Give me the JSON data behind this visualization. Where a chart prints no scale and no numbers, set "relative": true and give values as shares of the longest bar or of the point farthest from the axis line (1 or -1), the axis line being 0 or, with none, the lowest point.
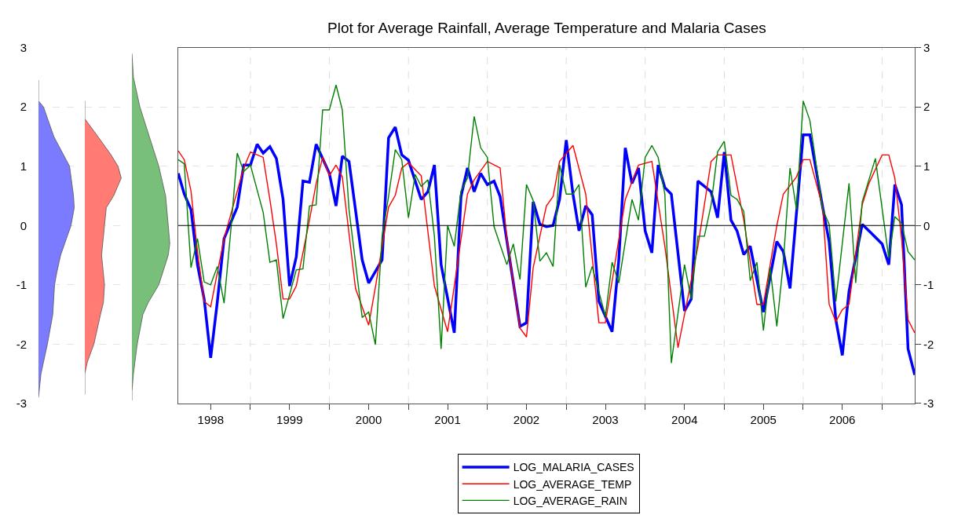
{
  "chart_data": [
    {
      "type": "area",
      "orientation": "horizontal",
      "relative": true,
      "color": "#7b7bff",
      "x": [
        2.45,
        2.1,
        2,
        1.5,
        1,
        0.5,
        0.3,
        0,
        -0.5,
        -0.8,
        -1,
        -1.5,
        -2,
        -2.5,
        -2.9
      ],
      "values": [
        0,
        0,
        0.14,
        0.43,
        0.87,
        0.98,
        1,
        0.91,
        0.62,
        0.51,
        0.45,
        0.4,
        0.25,
        0.07,
        0
      ],
      "ylim": [
        -3,
        3
      ],
      "yticks": [
        -3,
        -2,
        -1,
        0,
        1,
        2,
        3
      ],
      "grid": "y",
      "tick_labels": "y"
    },
    {
      "type": "area",
      "orientation": "horizontal",
      "relative": true,
      "color": "#ff7b73",
      "x": [
        2.1,
        1.8,
        1.5,
        1.2,
        1,
        0.8,
        0.5,
        0.3,
        0,
        -0.5,
        -1,
        -1.3,
        -1.5,
        -2,
        -2.3,
        -2.5,
        -2.85
      ],
      "values": [
        0,
        0,
        0.36,
        0.71,
        0.91,
        1,
        0.79,
        0.59,
        0.54,
        0.46,
        0.54,
        0.51,
        0.43,
        0.25,
        0.07,
        0,
        0
      ],
      "ylim": [
        -3,
        3
      ],
      "yticks": [
        -3,
        -2,
        -1,
        0,
        1,
        2,
        3
      ],
      "grid": "y",
      "tick_labels": false
    },
    {
      "type": "area",
      "orientation": "horizontal",
      "relative": true,
      "color": "#78c07a",
      "x": [
        2.9,
        2.5,
        2,
        1.5,
        1,
        0.5,
        0,
        -0.3,
        -0.5,
        -1,
        -1.3,
        -1.5,
        -2,
        -2.5,
        -2.8,
        -2.95
      ],
      "values": [
        0,
        0.04,
        0.21,
        0.46,
        0.71,
        0.89,
        0.96,
        1,
        0.96,
        0.71,
        0.43,
        0.29,
        0.14,
        0.04,
        0,
        0
      ],
      "ylim": [
        -3,
        3
      ],
      "yticks": [
        -3,
        -2,
        -1,
        0,
        1,
        2,
        3
      ],
      "grid": "y",
      "tick_labels": false
    },
    {
      "type": "line",
      "title": "Plot for Average Rainfall, Average Temperature and Malaria Cases",
      "xlim": [
        "1998-02",
        "2007-06"
      ],
      "xticks": [
        {
          "value": "1998-07",
          "label": "1998"
        },
        {
          "value": "1999-01",
          "label": null
        },
        {
          "value": "1999-07",
          "label": "1999"
        },
        {
          "value": "2000-01",
          "label": null
        },
        {
          "value": "2000-07",
          "label": "2000"
        },
        {
          "value": "2001-01",
          "label": null
        },
        {
          "value": "2001-07",
          "label": "2001"
        },
        {
          "value": "2002-01",
          "label": null
        },
        {
          "value": "2002-07",
          "label": "2002"
        },
        {
          "value": "2003-01",
          "label": null
        },
        {
          "value": "2003-07",
          "label": "2003"
        },
        {
          "value": "2004-01",
          "label": null
        },
        {
          "value": "2004-07",
          "label": "2004"
        },
        {
          "value": "2005-01",
          "label": null
        },
        {
          "value": "2005-07",
          "label": "2005"
        },
        {
          "value": "2006-01",
          "label": null
        },
        {
          "value": "2006-07",
          "label": "2006"
        },
        {
          "value": "2007-01",
          "label": null
        }
      ],
      "ylim": [
        -3,
        3
      ],
      "yticks": [
        -3,
        -2,
        -1,
        0,
        1,
        2,
        3
      ],
      "grid": true,
      "legend": "bottom",
      "marker": "none",
      "line_style": "solid",
      "ref_lines": [
        {
          "axis": "y",
          "value": 0,
          "color": "#000000"
        }
      ],
      "series": [
        {
          "name": "LOG_MALARIA_CASES",
          "color": "#0000ff",
          "x": [
            "1998-02",
            "1998-03",
            "1998-04",
            "1998-05",
            "1998-06",
            "1998-07",
            "1998-08",
            "1998-09",
            "1998-11",
            "1998-12",
            "1999-01",
            "1999-02",
            "1999-03",
            "1999-04",
            "1999-05",
            "1999-06",
            "1999-07",
            "1999-08",
            "1999-09",
            "1999-10",
            "1999-11",
            "2000-01",
            "2000-02",
            "2000-03",
            "2000-04",
            "2000-06",
            "2000-07",
            "2000-09",
            "2000-10",
            "2000-11",
            "2000-12",
            "2001-01",
            "2001-03",
            "2001-04",
            "2001-05",
            "2001-06",
            "2001-08",
            "2001-09",
            "2001-10",
            "2001-11",
            "2001-12",
            "2002-01",
            "2002-02",
            "2002-03",
            "2002-06",
            "2002-07",
            "2002-08",
            "2002-09",
            "2002-10",
            "2002-11",
            "2002-12",
            "2003-01",
            "2003-02",
            "2003-03",
            "2003-04",
            "2003-05",
            "2003-06",
            "2003-08",
            "2003-09",
            "2003-10",
            "2003-11",
            "2003-12",
            "2004-01",
            "2004-02",
            "2004-03",
            "2004-04",
            "2004-05",
            "2004-07",
            "2004-08",
            "2004-09",
            "2004-11",
            "2004-12",
            "2005-01",
            "2005-02",
            "2005-03",
            "2005-04",
            "2005-05",
            "2005-07",
            "2005-09",
            "2005-10",
            "2005-11",
            "2006-01",
            "2006-02",
            "2006-04",
            "2006-05",
            "2006-06",
            "2006-07",
            "2006-08",
            "2006-10",
            "2006-11",
            "2007-01",
            "2007-02",
            "2007-03",
            "2007-04",
            "2007-05",
            "2007-06"
          ],
          "values": [
            0.88,
            0.53,
            0.27,
            -0.66,
            -1.24,
            -2.23,
            -1.28,
            -0.22,
            0.31,
            1.02,
            1.02,
            1.37,
            1.22,
            1.33,
            1.13,
            0.44,
            -1.02,
            -0.53,
            0.75,
            0.73,
            1.37,
            0.88,
            0.33,
            1.17,
            1.08,
            -0.58,
            -0.97,
            -0.58,
            1.48,
            1.66,
            1.19,
            1.1,
            0.44,
            0.57,
            1.02,
            -0.66,
            -1.81,
            0.49,
            0.97,
            0.57,
            0.88,
            0.69,
            0.75,
            0.49,
            -1.7,
            -1.64,
            0.4,
            0.02,
            -0.02,
            0.0,
            0.44,
            1.44,
            0.53,
            -0.09,
            0.33,
            0.18,
            -1.28,
            -1.79,
            -0.58,
            1.31,
            0.71,
            0.97,
            -0.09,
            -0.46,
            1.02,
            0.64,
            0.53,
            -1.44,
            -1.24,
            0.75,
            0.57,
            0.13,
            1.24,
            0.09,
            -0.09,
            -0.49,
            -0.35,
            -1.46,
            -0.27,
            -0.44,
            -1.06,
            1.53,
            1.53,
            0.31,
            -0.27,
            -1.59,
            -2.19,
            -1.11,
            0.02,
            -0.09,
            -0.31,
            -0.66,
            0.69,
            0.35,
            -2.08,
            -2.52
          ]
        },
        {
          "name": "LOG_AVERAGE_TEMP",
          "color": "#ff0000",
          "x": [
            "1998-02",
            "1998-03",
            "1998-04",
            "1998-05",
            "1998-06",
            "1998-07",
            "1998-09",
            "1998-11",
            "1998-12",
            "1999-01",
            "1999-03",
            "1999-04",
            "1999-05",
            "1999-06",
            "1999-07",
            "1999-08",
            "1999-10",
            "1999-11",
            "1999-12",
            "2000-01",
            "2000-02",
            "2000-03",
            "2000-05",
            "2000-07",
            "2000-08",
            "2000-10",
            "2000-11",
            "2000-12",
            "2001-01",
            "2001-03",
            "2001-05",
            "2001-07",
            "2001-08",
            "2001-10",
            "2001-11",
            "2002-01",
            "2002-03",
            "2002-04",
            "2002-06",
            "2002-07",
            "2002-08",
            "2002-10",
            "2002-11",
            "2002-12",
            "2003-02",
            "2003-04",
            "2003-06",
            "2003-07",
            "2003-10",
            "2003-12",
            "2004-02",
            "2004-04",
            "2004-06",
            "2004-09",
            "2004-11",
            "2004-12",
            "2005-02",
            "2005-04",
            "2005-06",
            "2005-07",
            "2005-09",
            "2005-10",
            "2005-12",
            "2006-01",
            "2006-02",
            "2006-04",
            "2006-05",
            "2006-06",
            "2006-07",
            "2006-08",
            "2006-10",
            "2006-11",
            "2007-01",
            "2007-02",
            "2007-03",
            "2007-04",
            "2007-05",
            "2007-06"
          ],
          "values": [
            1.26,
            1.11,
            0.58,
            -0.44,
            -1.28,
            -1.37,
            -0.22,
            0.58,
            0.97,
            1.24,
            1.15,
            0.44,
            -0.31,
            -1.24,
            -1.24,
            -1.02,
            0.09,
            0.71,
            1.15,
            0.84,
            1.02,
            0.82,
            -1.06,
            -1.68,
            -1.04,
            0.31,
            0.51,
            0.97,
            1.06,
            0.84,
            -1.02,
            -1.79,
            -1.02,
            0.53,
            0.77,
            1.08,
            0.97,
            -0.22,
            -1.73,
            -1.88,
            -0.71,
            0.33,
            0.49,
            1.08,
            1.35,
            0.53,
            -1.64,
            -1.64,
            0.44,
            1.02,
            1.08,
            -0.35,
            -2.06,
            -0.35,
            1.08,
            1.19,
            1.19,
            0.09,
            -1.33,
            -1.33,
            0,
            0.53,
            0.82,
            1.11,
            1.11,
            0.31,
            -1.33,
            -1.62,
            -1.42,
            -1.33,
            0.35,
            0.71,
            1.19,
            1.19,
            0.8,
            -0.22,
            -1.59,
            -1.81
          ]
        },
        {
          "name": "LOG_AVERAGE_RAIN",
          "color": "#008000",
          "x": [
            "1998-02",
            "1998-03",
            "1998-04",
            "1998-05",
            "1998-06",
            "1998-07",
            "1998-08",
            "1998-09",
            "1998-10",
            "1998-11",
            "1998-12",
            "1999-01",
            "1999-03",
            "1999-04",
            "1999-05",
            "1999-06",
            "1999-08",
            "1999-09",
            "1999-10",
            "1999-11",
            "1999-12",
            "2000-01",
            "2000-02",
            "2000-03",
            "2000-04",
            "2000-06",
            "2000-07",
            "2000-08",
            "2000-09",
            "2000-10",
            "2000-11",
            "2000-12",
            "2001-01",
            "2001-02",
            "2001-03",
            "2001-04",
            "2001-05",
            "2001-06",
            "2001-07",
            "2001-08",
            "2001-09",
            "2001-10",
            "2001-11",
            "2001-12",
            "2002-01",
            "2002-02",
            "2002-04",
            "2002-05",
            "2002-06",
            "2002-07",
            "2002-08",
            "2002-09",
            "2002-10",
            "2002-11",
            "2002-12",
            "2003-01",
            "2003-02",
            "2003-03",
            "2003-04",
            "2003-05",
            "2003-07",
            "2003-08",
            "2003-09",
            "2003-11",
            "2003-12",
            "2004-01",
            "2004-02",
            "2004-03",
            "2004-04",
            "2004-05",
            "2004-07",
            "2004-08",
            "2004-09",
            "2004-10",
            "2004-11",
            "2004-12",
            "2005-01",
            "2005-02",
            "2005-03",
            "2005-04",
            "2005-05",
            "2005-06",
            "2005-07",
            "2005-08",
            "2005-09",
            "2005-10",
            "2005-11",
            "2005-12",
            "2006-01",
            "2006-02",
            "2006-04",
            "2006-05",
            "2006-06",
            "2006-08",
            "2006-09",
            "2006-10",
            "2006-12",
            "2007-02",
            "2007-03",
            "2007-04",
            "2007-05",
            "2007-06"
          ],
          "values": [
            1.11,
            1.04,
            -0.71,
            -0.22,
            -0.95,
            -1.0,
            -0.69,
            -1.31,
            -0.13,
            1.22,
            0.91,
            1.02,
            0.22,
            -0.62,
            -0.58,
            -1.57,
            -0.75,
            -0.73,
            0.33,
            0.35,
            1.95,
            1.95,
            2.37,
            1.95,
            0.27,
            -1.55,
            -1.46,
            -2.01,
            -0.18,
            0.49,
            1.28,
            1.11,
            0.13,
            0.86,
            0.66,
            0.77,
            -0.18,
            -2.08,
            0,
            -0.35,
            0.58,
            0.8,
            1.84,
            1.31,
            1.15,
            -0.02,
            -0.66,
            -0.31,
            -0.91,
            0.69,
            0.42,
            -0.6,
            -0.46,
            -0.69,
            1.02,
            0.53,
            0.53,
            0.69,
            -1.04,
            -0.69,
            -1.53,
            -0.62,
            -0.97,
            0.44,
            0.09,
            1.15,
            1.35,
            1.15,
            0.53,
            -2.32,
            -0.66,
            -1.24,
            -0.18,
            -0.18,
            0.35,
            1.24,
            1.42,
            0.51,
            0.44,
            0.24,
            -0.93,
            -0.62,
            -1.77,
            -0.71,
            -1.7,
            -0.62,
            0.97,
            0.27,
            2.1,
            1.77,
            0.27,
            0.02,
            -1.28,
            0.71,
            -0.97,
            0.4,
            1.13,
            -0.55,
            0.15,
            0.04,
            -0.44,
            -0.58
          ]
        }
      ]
    }
  ]
}
